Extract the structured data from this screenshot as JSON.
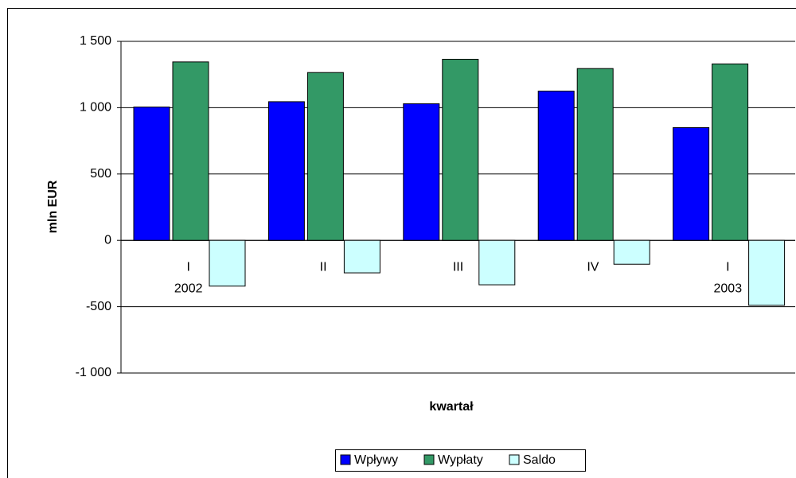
{
  "chart_data": {
    "type": "bar",
    "y_label": "mln EUR",
    "x_label": "kwartał",
    "categories": [
      "I",
      "II",
      "III",
      "IV",
      "I"
    ],
    "category_years": [
      "2002",
      null,
      null,
      null,
      "2003"
    ],
    "series": [
      {
        "name": "Wpływy",
        "color": "#0000ff",
        "values": [
          1005,
          1045,
          1030,
          1125,
          850
        ]
      },
      {
        "name": "Wypłaty",
        "color": "#339966",
        "values": [
          1345,
          1265,
          1365,
          1295,
          1330
        ]
      },
      {
        "name": "Saldo",
        "color": "#ccffff",
        "values": [
          -345,
          -245,
          -335,
          -180,
          -490
        ]
      }
    ],
    "ylim": [
      -1000,
      1500
    ],
    "yticks": [
      {
        "value": -1000,
        "label": "-1 000"
      },
      -500,
      0,
      500,
      {
        "value": 1000,
        "label": "1 000"
      },
      {
        "value": 1500,
        "label": "1 500"
      }
    ],
    "grid": true,
    "legend": "bottom"
  }
}
